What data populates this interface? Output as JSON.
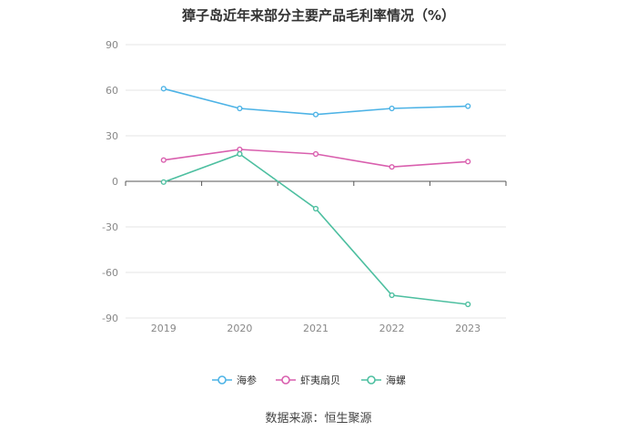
{
  "chart_data": {
    "type": "line",
    "title": "獐子岛近年来部分主要产品毛利率情况（%）",
    "categories": [
      "2019",
      "2020",
      "2021",
      "2022",
      "2023"
    ],
    "ylim": [
      -90,
      90
    ],
    "yticks": [
      90,
      60,
      30,
      0,
      -30,
      -60,
      -90
    ],
    "grid": true,
    "legend": "bottom-center",
    "series": [
      {
        "name": "海参",
        "color": "#4db3e6",
        "values": [
          61,
          48,
          44,
          48,
          49.5
        ]
      },
      {
        "name": "虾夷扇贝",
        "color": "#d95fae",
        "values": [
          14,
          21,
          18,
          9.5,
          13
        ]
      },
      {
        "name": "海螺",
        "color": "#4dbfa0",
        "values": [
          -0.5,
          18,
          -18,
          -75,
          -81
        ]
      }
    ]
  },
  "source": "数据来源：恒生聚源"
}
